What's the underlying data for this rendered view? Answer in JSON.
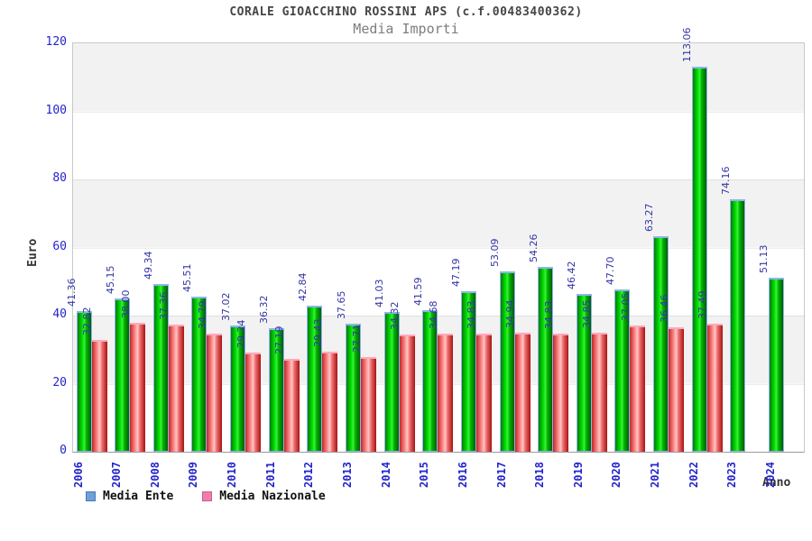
{
  "title": "CORALE GIOACCHINO ROSSINI APS (c.f.00483400362)",
  "subtitle": "Media Importi",
  "y_axis_label": "Euro",
  "x_axis_label": "Anno",
  "legend": {
    "items": [
      {
        "label": "Media Ente",
        "swatch_fill": "#6fa0d8",
        "swatch_border": "#4878b0"
      },
      {
        "label": "Media Nazionale",
        "swatch_fill": "#f07eac",
        "swatch_border": "#c85c8c"
      }
    ]
  },
  "chart_data": {
    "type": "bar",
    "title": "CORALE GIOACCHINO ROSSINI APS (c.f.00483400362)",
    "subtitle": "Media Importi",
    "xlabel": "Anno",
    "ylabel": "Euro",
    "ylim": [
      0,
      120
    ],
    "yticks": [
      0,
      20,
      40,
      60,
      80,
      100,
      120
    ],
    "grid": "horizontal-bands",
    "band_colors": [
      "#f2f2f2",
      "#ffffff"
    ],
    "legend_position": "bottom-left",
    "categories": [
      "2006",
      "2007",
      "2008",
      "2009",
      "2010",
      "2011",
      "2012",
      "2013",
      "2014",
      "2015",
      "2016",
      "2017",
      "2018",
      "2019",
      "2020",
      "2021",
      "2022",
      "2023",
      "2024"
    ],
    "series": [
      {
        "name": "Media Ente",
        "values": [
          41.36,
          45.15,
          49.34,
          45.51,
          37.02,
          36.32,
          42.84,
          37.65,
          41.03,
          41.59,
          47.19,
          53.09,
          54.26,
          46.42,
          47.7,
          63.27,
          113.06,
          74.16,
          51.13
        ],
        "gradient": [
          "#0a7a0a",
          "#00e000",
          "#39f239",
          "#00b400",
          "#045e04"
        ],
        "cap_color": "#8fb4ee"
      },
      {
        "name": "Media Nazionale",
        "values": [
          32.82,
          38.0,
          37.36,
          34.79,
          29.24,
          27.19,
          29.43,
          27.71,
          34.32,
          34.68,
          34.83,
          34.94,
          34.83,
          34.85,
          37.05,
          36.46,
          37.49,
          null,
          null
        ],
        "gradient": [
          "#c22626",
          "#ff8e8e",
          "#ffc6c6",
          "#f07070",
          "#a81212"
        ],
        "cap_color": "#ffa8be"
      }
    ],
    "value_label_color": "#3535a5",
    "tick_label_color": "#2424cc",
    "category_label_color": "#2424cc"
  }
}
